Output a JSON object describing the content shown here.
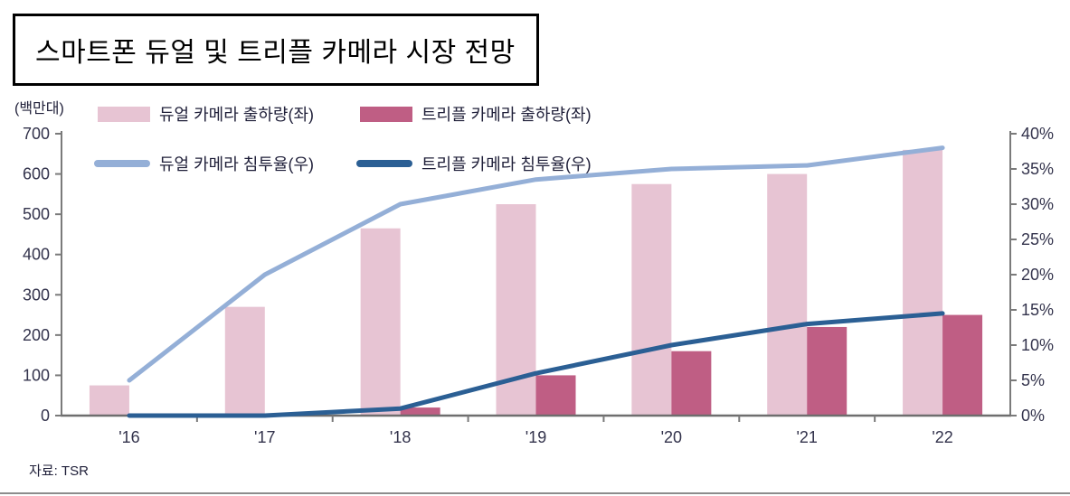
{
  "title": "스마트폰 듀얼 및 트리플 카메라 시장 전망",
  "source": "자료: TSR",
  "legend": [
    {
      "label": "듀얼 카메라 출하량(좌)",
      "type": "bar",
      "color": "#e7c4d3"
    },
    {
      "label": "트리플 카메라 출하량(좌)",
      "type": "bar",
      "color": "#bf5e84"
    },
    {
      "label": "듀얼 카메라 침투율(우)",
      "type": "line",
      "color": "#94afd7"
    },
    {
      "label": "트리플 카메라 침투율(우)",
      "type": "line",
      "color": "#2b5f94"
    }
  ],
  "chart_data": {
    "type": "bar",
    "subtype": "bar-line-combo",
    "title": "스마트폰 듀얼 및 트리플 카메라 시장 전망",
    "categories": [
      "'16",
      "'17",
      "'18",
      "'19",
      "'20",
      "'21",
      "'22"
    ],
    "series": [
      {
        "name": "듀얼 카메라 출하량(좌)",
        "type": "bar",
        "axis": "left",
        "color": "#e7c4d3",
        "values": [
          75,
          270,
          465,
          525,
          575,
          600,
          660
        ]
      },
      {
        "name": "트리플 카메라 출하량(좌)",
        "type": "bar",
        "axis": "left",
        "color": "#bf5e84",
        "values": [
          0,
          0,
          20,
          100,
          160,
          220,
          250
        ]
      },
      {
        "name": "듀얼 카메라 침투율(우)",
        "type": "line",
        "axis": "right",
        "color": "#94afd7",
        "values": [
          5,
          20,
          30,
          33.5,
          35,
          35.5,
          38
        ]
      },
      {
        "name": "트리플 카메라 침투율(우)",
        "type": "line",
        "axis": "right",
        "color": "#2b5f94",
        "values": [
          0,
          0,
          1,
          6,
          10,
          13,
          14.5
        ]
      }
    ],
    "left_axis": {
      "unit": "(백만대)",
      "min": 0,
      "max": 700,
      "ticks": [
        0,
        100,
        200,
        300,
        400,
        500,
        600,
        700
      ]
    },
    "right_axis": {
      "min": 0,
      "max": 40,
      "ticks": [
        "0%",
        "5%",
        "10%",
        "15%",
        "20%",
        "25%",
        "30%",
        "35%",
        "40%"
      ]
    },
    "grid": false,
    "legend_position": "top-left"
  },
  "colors": {
    "dual_bar": "#e7c4d3",
    "triple_bar": "#bf5e84",
    "dual_line": "#94afd7",
    "triple_line": "#2b5f94",
    "axis": "#7a7a7a",
    "tick_text": "#33334c"
  }
}
